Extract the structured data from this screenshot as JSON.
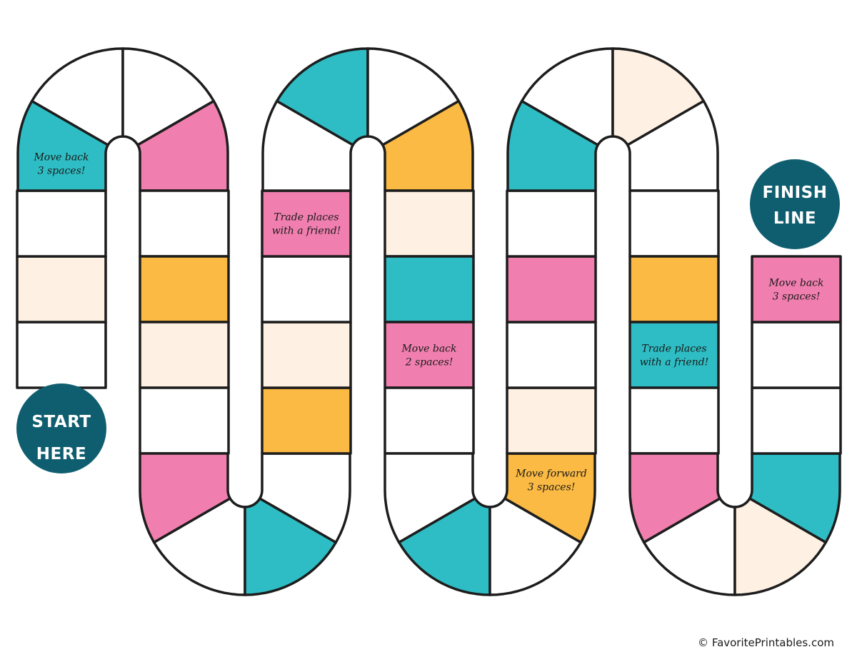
{
  "colors": {
    "white": "#ffffff",
    "teal": "#2EBDC4",
    "pink": "#F07FAF",
    "yellow": "#FBBA43",
    "cream": "#FEF1E3",
    "badge": "#0F5E70"
  },
  "start": {
    "lines": [
      "START",
      "HERE"
    ]
  },
  "finish": {
    "lines": [
      "FINISH",
      "LINE"
    ]
  },
  "spaces": [
    {
      "color": "white"
    },
    {
      "color": "cream"
    },
    {
      "color": "white"
    },
    {
      "color": "teal",
      "lines": [
        "Move back",
        "3 spaces!"
      ]
    },
    {
      "color": "white"
    },
    {
      "color": "white"
    },
    {
      "color": "pink"
    },
    {
      "color": "white"
    },
    {
      "color": "yellow"
    },
    {
      "color": "cream"
    },
    {
      "color": "white"
    },
    {
      "color": "pink"
    },
    {
      "color": "white"
    },
    {
      "color": "teal"
    },
    {
      "color": "white"
    },
    {
      "color": "yellow"
    },
    {
      "color": "cream"
    },
    {
      "color": "white"
    },
    {
      "color": "pink",
      "lines": [
        "Trade places",
        "with a friend!"
      ]
    },
    {
      "color": "white"
    },
    {
      "color": "teal"
    },
    {
      "color": "white"
    },
    {
      "color": "yellow"
    },
    {
      "color": "cream"
    },
    {
      "color": "teal"
    },
    {
      "color": "pink",
      "lines": [
        "Move back",
        "2 spaces!"
      ]
    },
    {
      "color": "white"
    },
    {
      "color": "white"
    },
    {
      "color": "teal"
    },
    {
      "color": "white"
    },
    {
      "color": "yellow",
      "lines": [
        "Move forward",
        "3 spaces!"
      ]
    },
    {
      "color": "cream"
    },
    {
      "color": "white"
    },
    {
      "color": "pink"
    },
    {
      "color": "white"
    },
    {
      "color": "teal"
    },
    {
      "color": "white"
    },
    {
      "color": "cream"
    },
    {
      "color": "white"
    },
    {
      "color": "white"
    },
    {
      "color": "yellow"
    },
    {
      "color": "teal",
      "lines": [
        "Trade places",
        "with a friend!"
      ]
    },
    {
      "color": "white"
    },
    {
      "color": "pink"
    },
    {
      "color": "white"
    },
    {
      "color": "cream"
    },
    {
      "color": "teal"
    },
    {
      "color": "white"
    },
    {
      "color": "white"
    },
    {
      "color": "pink",
      "lines": [
        "Move back",
        "3 spaces!"
      ]
    }
  ],
  "copyright": "© FavoritePrintables.com"
}
